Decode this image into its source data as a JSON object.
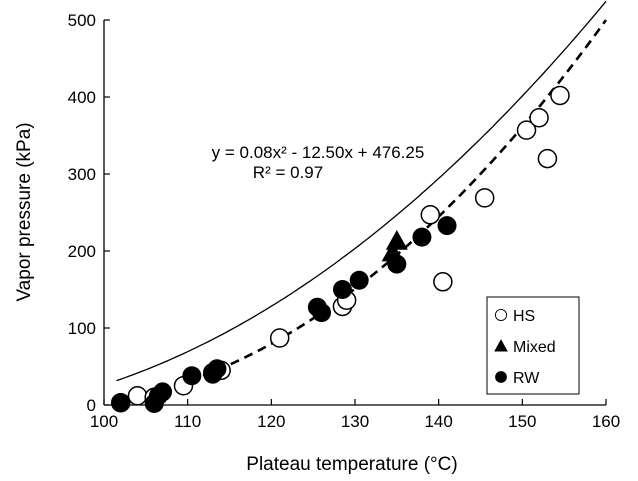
{
  "chart_data": {
    "type": "scatter",
    "xlabel": "Plateau temperature (°C)",
    "ylabel": "Vapor pressure (kPa)",
    "xlim": [
      100,
      160
    ],
    "ylim": [
      0,
      500
    ],
    "x_ticks": [
      100,
      110,
      120,
      130,
      140,
      150,
      160
    ],
    "y_ticks": [
      0,
      100,
      200,
      300,
      400,
      500
    ],
    "grid": false,
    "legend_position": "bottom-right",
    "equation": {
      "line1": "y = 0.08x² - 12.50x + 476.25",
      "line2": "R² = 0.97"
    },
    "series": [
      {
        "name": "HS",
        "marker": "open-circle",
        "points": [
          [
            102,
            3
          ],
          [
            104,
            12
          ],
          [
            106,
            10
          ],
          [
            109.5,
            25
          ],
          [
            113,
            42
          ],
          [
            114,
            45
          ],
          [
            121,
            87
          ],
          [
            128.5,
            128
          ],
          [
            129,
            136
          ],
          [
            139,
            247
          ],
          [
            140.5,
            160
          ],
          [
            145.5,
            269
          ],
          [
            150.5,
            357
          ],
          [
            152,
            373
          ],
          [
            153,
            320
          ],
          [
            154.5,
            402
          ]
        ]
      },
      {
        "name": "Mixed",
        "marker": "filled-triangle",
        "points": [
          [
            134.5,
            198
          ],
          [
            135,
            213
          ]
        ]
      },
      {
        "name": "RW",
        "marker": "filled-circle",
        "points": [
          [
            102,
            3
          ],
          [
            106,
            2
          ],
          [
            106.5,
            12
          ],
          [
            107,
            17
          ],
          [
            110.5,
            38
          ],
          [
            113,
            40
          ],
          [
            113.5,
            47
          ],
          [
            125.5,
            127
          ],
          [
            126,
            120
          ],
          [
            128.5,
            150
          ],
          [
            130.5,
            162
          ],
          [
            135,
            183
          ],
          [
            138,
            218
          ],
          [
            141,
            233
          ]
        ]
      }
    ],
    "fits": [
      {
        "style": "solid",
        "curve": "fit-solid-curve",
        "a": 0.08,
        "b": -12.5,
        "c": 476.25
      },
      {
        "style": "dashed",
        "curve": "fit-dashed-curve",
        "a": 0.0,
        "b": 0.0,
        "c": 0.0
      }
    ]
  }
}
